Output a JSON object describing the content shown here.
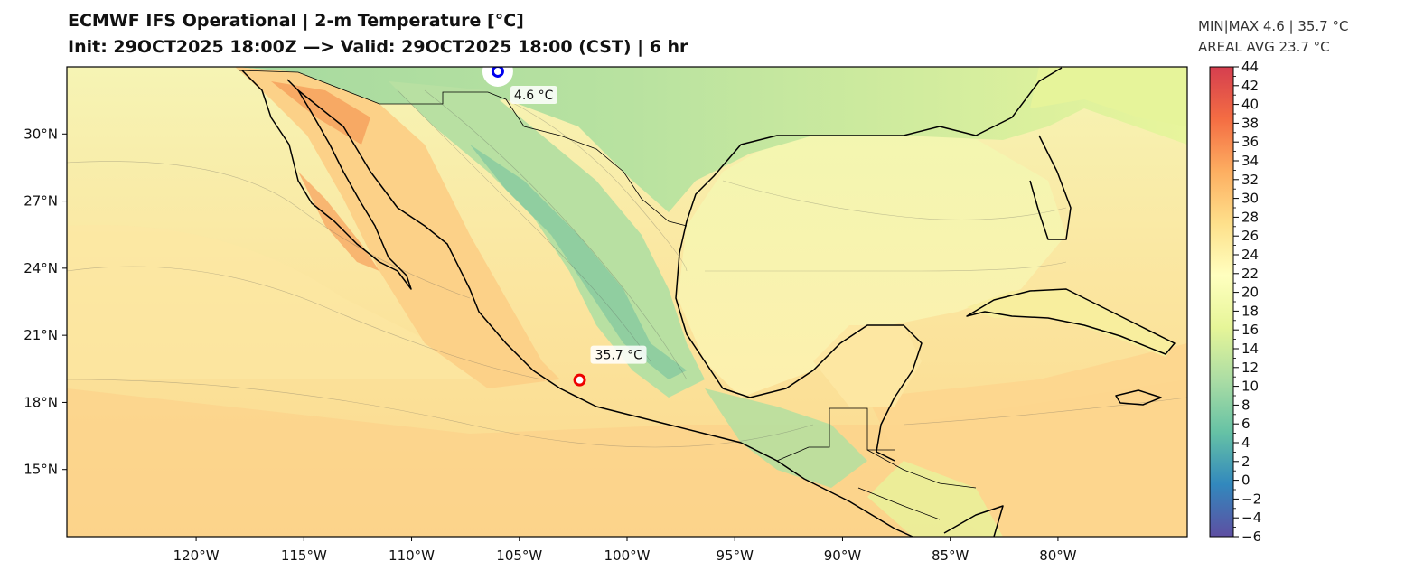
{
  "title": {
    "line1": "ECMWF IFS Operational | 2-m Temperature [°C]",
    "line2": "Init: 29OCT2025 18:00Z  —>  Valid: 29OCT2025 18:00 (CST) | 6 hr"
  },
  "stats": {
    "minmax": "MIN|MAX 4.6 | 35.7 °C",
    "areal_avg": "AREAL AVG 23.7 °C"
  },
  "map": {
    "lon_range": [
      -126,
      -74
    ],
    "lat_range": [
      12,
      33
    ],
    "lon_ticks": [
      {
        "value": -120,
        "label": "120°W"
      },
      {
        "value": -115,
        "label": "115°W"
      },
      {
        "value": -110,
        "label": "110°W"
      },
      {
        "value": -105,
        "label": "105°W"
      },
      {
        "value": -100,
        "label": "100°W"
      },
      {
        "value": -95,
        "label": "95°W"
      },
      {
        "value": -90,
        "label": "90°W"
      },
      {
        "value": -85,
        "label": "85°W"
      },
      {
        "value": -80,
        "label": "80°W"
      }
    ],
    "lat_ticks": [
      {
        "value": 30,
        "label": "30°N"
      },
      {
        "value": 27,
        "label": "27°N"
      },
      {
        "value": 24,
        "label": "24°N"
      },
      {
        "value": 21,
        "label": "21°N"
      },
      {
        "value": 18,
        "label": "18°N"
      },
      {
        "value": 15,
        "label": "15°N"
      }
    ],
    "min_marker": {
      "lon": -106.0,
      "lat": 32.8,
      "label": "4.6 °C",
      "color": "#0000ee"
    },
    "max_marker": {
      "lon": -102.2,
      "lat": 19.0,
      "label": "35.7 °C",
      "color": "#ee0000"
    }
  },
  "colorbar": {
    "min": -6,
    "max": 44,
    "tick_labels": [
      "44",
      "42",
      "40",
      "38",
      "36",
      "34",
      "32",
      "30",
      "28",
      "26",
      "24",
      "22",
      "20",
      "18",
      "16",
      "14",
      "12",
      "10",
      "8",
      "6",
      "4",
      "2",
      "0",
      "−2",
      "−4",
      "−6"
    ],
    "colors": [
      "#5e4fa2",
      "#3288bd",
      "#66c2a5",
      "#abdda4",
      "#e6f598",
      "#ffffbf",
      "#fee08b",
      "#fdae61",
      "#f46d43",
      "#d53e4f"
    ]
  }
}
